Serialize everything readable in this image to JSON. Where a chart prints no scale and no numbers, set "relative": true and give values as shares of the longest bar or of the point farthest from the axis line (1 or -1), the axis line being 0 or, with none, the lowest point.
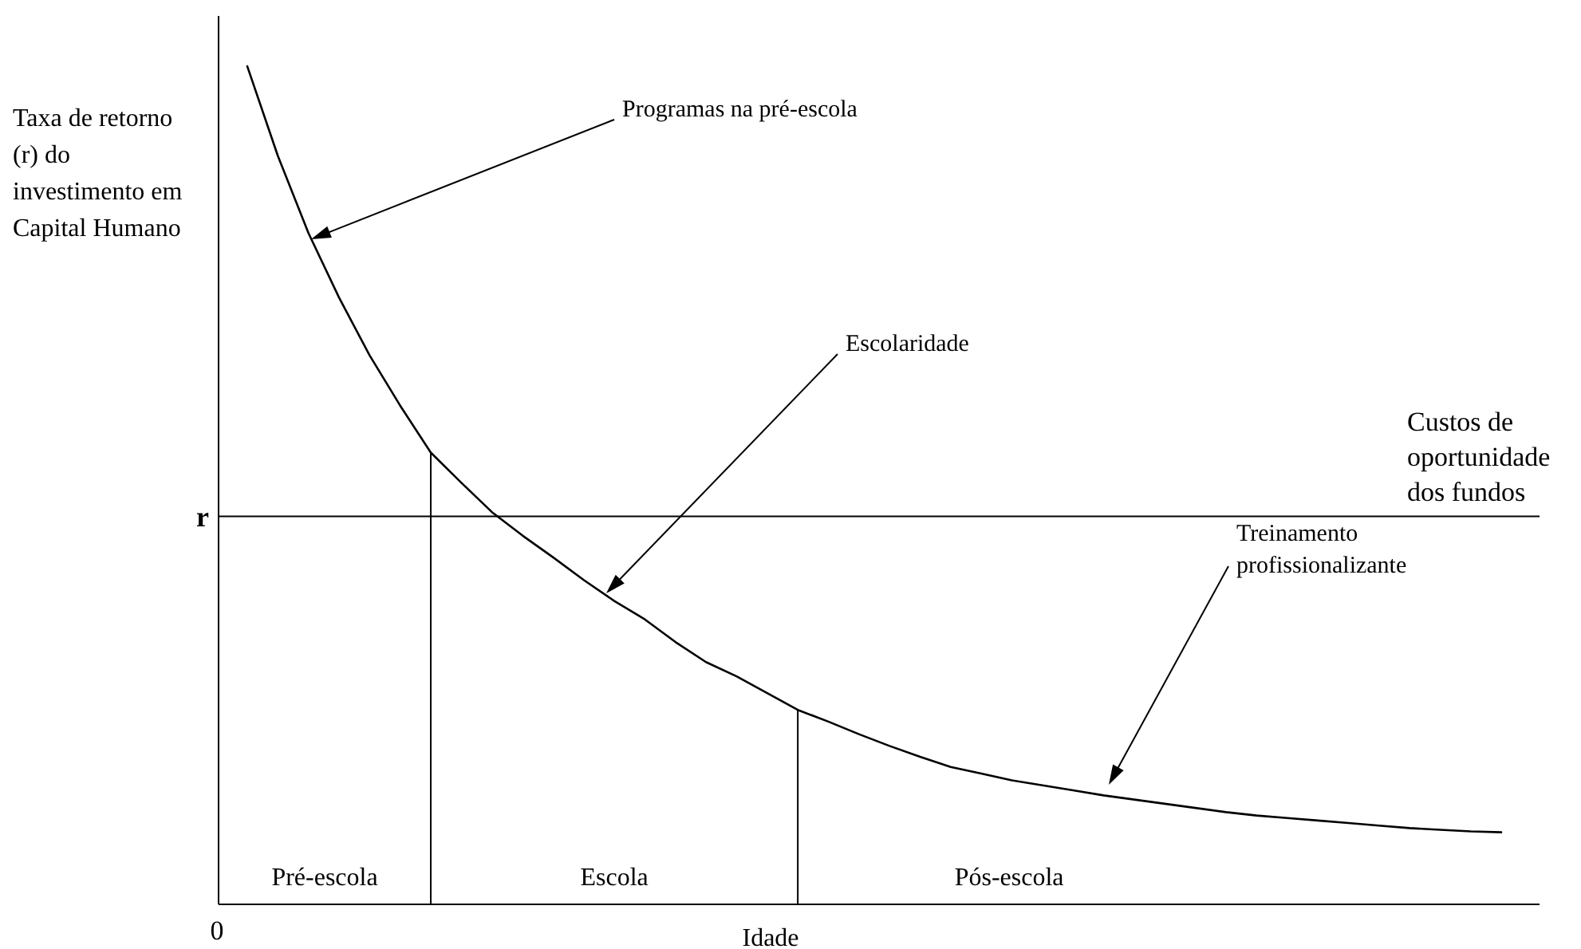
{
  "chart_data": {
    "type": "line",
    "relative": true,
    "xlabel": "Idade",
    "ylabel": "Taxa de retorno (r) do investimento em Capital Humano",
    "categories": [
      null,
      null,
      null,
      null,
      null,
      null,
      null,
      null,
      null,
      null,
      null,
      null,
      null,
      null,
      null,
      null,
      null,
      null,
      null,
      null,
      null,
      null,
      null,
      null,
      null,
      null,
      null,
      null,
      null,
      null,
      null,
      null,
      null,
      null,
      null,
      null,
      null,
      null,
      null,
      null,
      null,
      null
    ],
    "series": [
      {
        "color": "#000000",
        "values": [
          1.0,
          0.893,
          0.801,
          0.724,
          0.655,
          0.595,
          0.539,
          0.503,
          0.468,
          0.44,
          0.414,
          0.387,
          0.362,
          0.34,
          0.313,
          0.289,
          0.272,
          0.252,
          0.232,
          0.218,
          0.203,
          0.189,
          0.176,
          0.164,
          0.156,
          0.148,
          0.142,
          0.136,
          0.13,
          0.125,
          0.12,
          0.115,
          0.11,
          0.106,
          0.103,
          0.1,
          0.097,
          0.094,
          0.091,
          0.089,
          0.087,
          0.086
        ]
      }
    ],
    "ref_lines": [
      {
        "axis": "y",
        "value": 0.463,
        "label": "r"
      }
    ],
    "annotations": [
      "Programas na pré-escola",
      "Escolaridade",
      "Treinamento profissionalizante",
      "Pré-escola",
      "Escola",
      "Pós-escola",
      "Custos de oportunidade dos fundos",
      "0"
    ],
    "grid": false,
    "legend": false,
    "marker": "none",
    "line_style": "solid"
  }
}
